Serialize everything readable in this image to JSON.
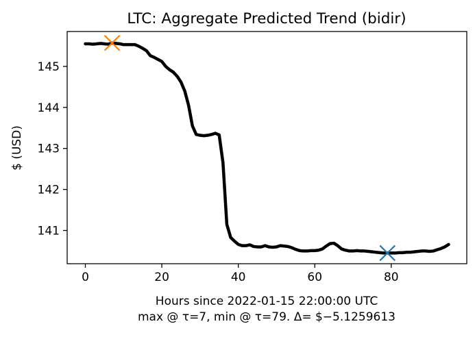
{
  "chart_data": {
    "type": "line",
    "title": "LTC: Aggregate Predicted Trend (bidir)",
    "xlabel": "Hours since 2022-01-15 22:00:00 UTC",
    "xlabel_line2": "max @ τ=7, min @ τ=79. Δ= $−5.1259613",
    "ylabel": "$ (USD)",
    "xlim": [
      -4.75,
      99.75
    ],
    "ylim": [
      140.19,
      145.85
    ],
    "x_ticks": [
      0,
      20,
      40,
      60,
      80
    ],
    "y_ticks": [
      141,
      142,
      143,
      144,
      145
    ],
    "x_tick_labels": [
      "0",
      "20",
      "40",
      "60",
      "80"
    ],
    "y_tick_labels": [
      "141",
      "142",
      "143",
      "144",
      "145"
    ],
    "grid": false,
    "series": [
      {
        "color": "#000000",
        "x": [
          0,
          1,
          2,
          3,
          4,
          5,
          6,
          7,
          8,
          9,
          10,
          11,
          12,
          13,
          14,
          15,
          16,
          17,
          18,
          19,
          20,
          21,
          22,
          23,
          24,
          25,
          26,
          27,
          28,
          29,
          30,
          31,
          32,
          33,
          34,
          35,
          36,
          37,
          38,
          39,
          40,
          41,
          42,
          43,
          44,
          45,
          46,
          47,
          48,
          49,
          50,
          51,
          52,
          53,
          54,
          55,
          56,
          57,
          58,
          59,
          60,
          61,
          62,
          63,
          64,
          65,
          66,
          67,
          68,
          69,
          70,
          71,
          72,
          73,
          74,
          75,
          76,
          77,
          78,
          79,
          80,
          81,
          82,
          83,
          84,
          85,
          86,
          87,
          88,
          89,
          90,
          91,
          92,
          93,
          94,
          95
        ],
        "y": [
          145.55,
          145.55,
          145.54,
          145.55,
          145.56,
          145.55,
          145.54,
          145.57,
          145.56,
          145.55,
          145.53,
          145.53,
          145.53,
          145.53,
          145.49,
          145.44,
          145.38,
          145.26,
          145.22,
          145.17,
          145.12,
          145.0,
          144.92,
          144.86,
          144.76,
          144.62,
          144.4,
          144.05,
          143.55,
          143.34,
          143.32,
          143.31,
          143.32,
          143.34,
          143.37,
          143.33,
          142.65,
          141.15,
          140.83,
          140.74,
          140.66,
          140.63,
          140.63,
          140.65,
          140.61,
          140.6,
          140.6,
          140.63,
          140.6,
          140.59,
          140.6,
          140.63,
          140.62,
          140.61,
          140.58,
          140.54,
          140.51,
          140.5,
          140.5,
          140.51,
          140.51,
          140.52,
          140.55,
          140.62,
          140.68,
          140.69,
          140.63,
          140.55,
          140.52,
          140.5,
          140.5,
          140.51,
          140.5,
          140.5,
          140.49,
          140.48,
          140.47,
          140.46,
          140.45,
          140.45,
          140.45,
          140.45,
          140.46,
          140.46,
          140.47,
          140.47,
          140.48,
          140.49,
          140.5,
          140.5,
          140.49,
          140.5,
          140.53,
          140.56,
          140.6,
          140.66
        ]
      }
    ],
    "markers": [
      {
        "x": 7,
        "y": 145.57,
        "color": "#ff7f0e"
      },
      {
        "x": 79,
        "y": 140.45,
        "color": "#1f77b4"
      }
    ]
  }
}
